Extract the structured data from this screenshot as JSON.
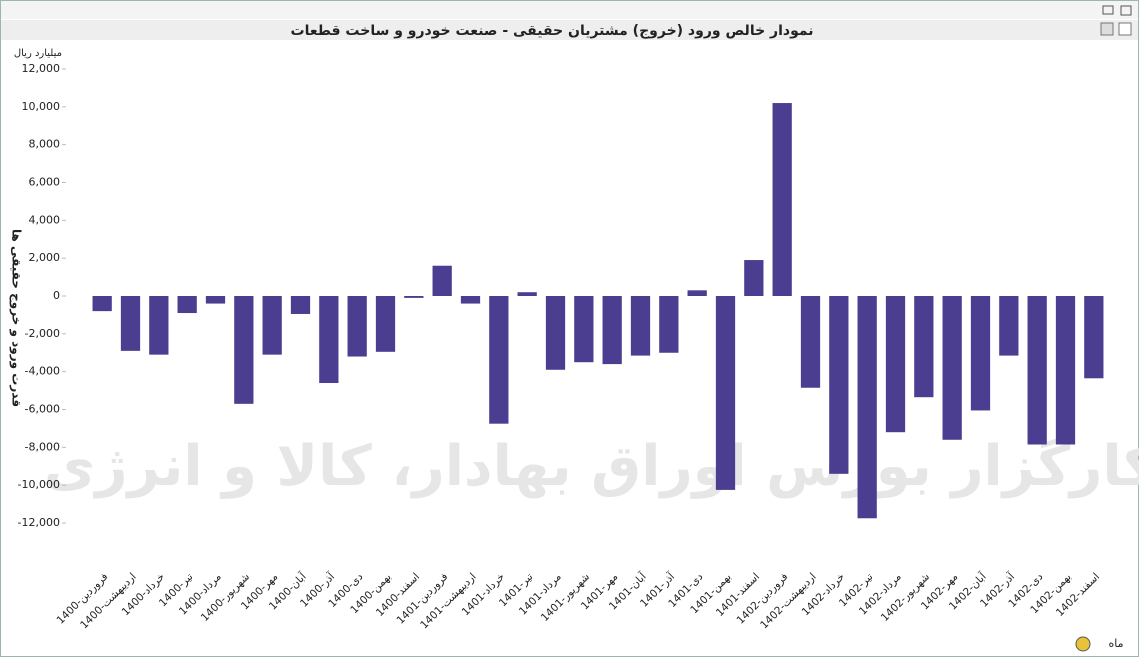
{
  "chart_data": {
    "type": "bar",
    "title": "نمودار خالص ورود (خروج) مشتریان حقیقی - صنعت خودرو و ساخت قطعات",
    "unit_label": "میلیارد ریال",
    "y_label": "قدرت ورود و خروج حقیقی ها",
    "x_label": "ماه",
    "watermark": "کارگزار بورس اوراق بهادار، کالا و انرژی",
    "categories": [
      "1400-فروردین",
      "1400-اردیبهشت",
      "1400-خرداد",
      "1400-تیر",
      "1400-مرداد",
      "1400-شهریور",
      "1400-مهر",
      "1400-آبان",
      "1400-آذر",
      "1400-دی",
      "1400-بهمن",
      "1400-اسفند",
      "1401-فروردین",
      "1401-اردیبهشت",
      "1401-خرداد",
      "1401-تیر",
      "1401-مرداد",
      "1401-شهریور",
      "1401-مهر",
      "1401-آبان",
      "1401-آذر",
      "1401-دی",
      "1401-بهمن",
      "1401-اسفند",
      "1402-فروردین",
      "1402-اردیبهشت",
      "1402-خرداد",
      "1402-تیر",
      "1402-مرداد",
      "1402-شهریور",
      "1402-مهر",
      "1402-آبان",
      "1402-آذر",
      "1402-دی",
      "1402-بهمن",
      "1402-اسفند"
    ],
    "values": [
      -800,
      -2900,
      -3100,
      -900,
      -400,
      -5700,
      -3100,
      -950,
      -4600,
      -3200,
      -2950,
      -100,
      1600,
      -400,
      -6750,
      200,
      -3900,
      -3500,
      -3600,
      -3150,
      -3000,
      300,
      -10250,
      1900,
      10200,
      -4850,
      -9400,
      -11750,
      -7200,
      -5350,
      -7600,
      -6050,
      -3150,
      -7850,
      -7850,
      -4350
    ],
    "color": "#4b3d8f",
    "ylim": [
      -12000,
      12000
    ],
    "yticks": [
      {
        "value": 12000,
        "label": "12,000"
      },
      {
        "value": 10000,
        "label": "10,000"
      },
      {
        "value": 8000,
        "label": "8,000"
      },
      {
        "value": 6000,
        "label": "6,000"
      },
      {
        "value": 4000,
        "label": "4,000"
      },
      {
        "value": 2000,
        "label": "2,000"
      },
      0,
      {
        "value": -2000,
        "label": "-2,000"
      },
      {
        "value": -4000,
        "label": "-4,000"
      },
      {
        "value": -6000,
        "label": "-6,000"
      },
      {
        "value": -8000,
        "label": "-8,000"
      },
      {
        "value": -10000,
        "label": "-10,000"
      },
      {
        "value": -12000,
        "label": "-12,000"
      }
    ],
    "grid": false
  }
}
